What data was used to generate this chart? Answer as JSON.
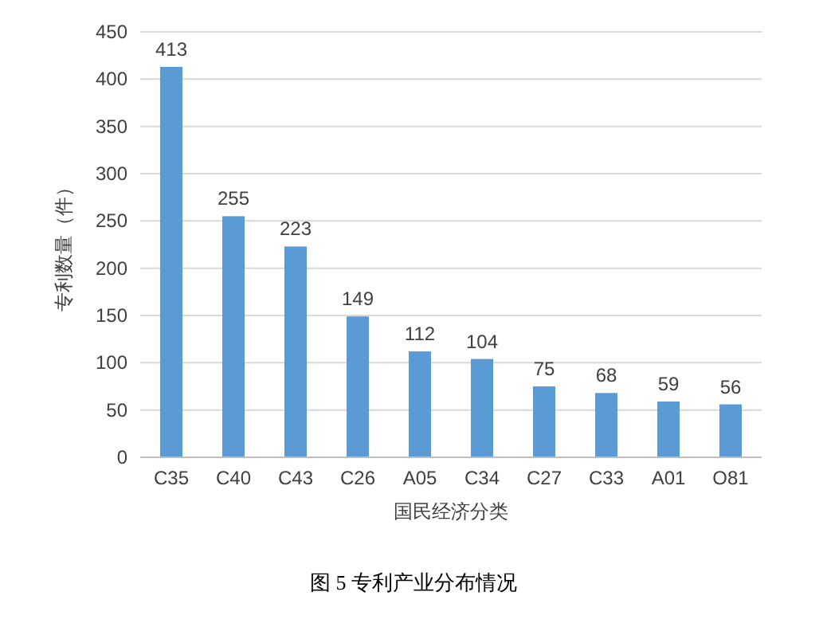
{
  "chart_data": {
    "type": "bar",
    "categories": [
      "C35",
      "C40",
      "C43",
      "C26",
      "A05",
      "C34",
      "C27",
      "C33",
      "A01",
      "O81"
    ],
    "values": [
      413,
      255,
      223,
      149,
      112,
      104,
      75,
      68,
      59,
      56
    ],
    "color": "#5b9bd5",
    "ylim": [
      0,
      450
    ],
    "yticks": [
      0,
      50,
      100,
      150,
      200,
      250,
      300,
      350,
      400,
      450
    ],
    "ylabel": "专利数量（件）",
    "xlabel": "国民经济分类",
    "annotations": [
      "图 5 专利产业分布情况"
    ],
    "data_labels": true,
    "grid": "y"
  }
}
